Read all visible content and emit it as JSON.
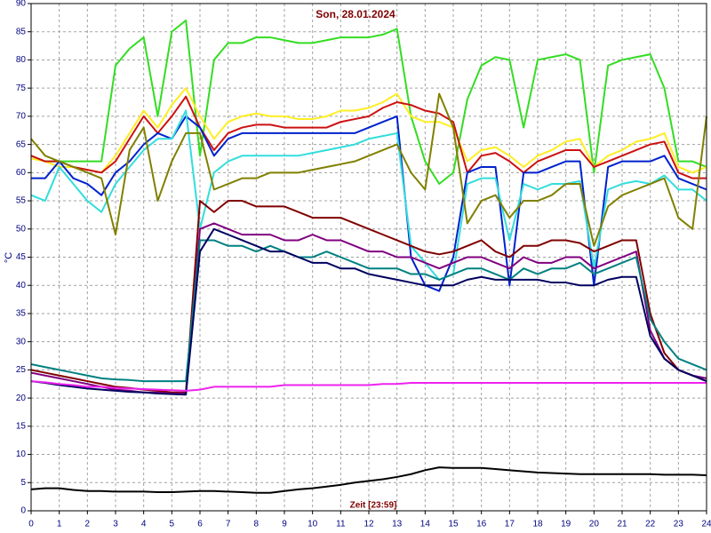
{
  "chart_data": {
    "type": "line",
    "title": "Son, 28.01.2024",
    "x_label": "Zeit [23:59]",
    "y_label": "°C",
    "x": [
      0,
      0.5,
      1,
      1.5,
      2,
      2.5,
      3,
      3.5,
      4,
      4.5,
      5,
      5.5,
      6,
      6.5,
      7,
      7.5,
      8,
      8.5,
      9,
      9.5,
      10,
      10.5,
      11,
      11.5,
      12,
      12.5,
      13,
      13.5,
      14,
      14.5,
      15,
      15.5,
      16,
      16.5,
      17,
      17.5,
      18,
      18.5,
      19,
      19.5,
      20,
      20.5,
      21,
      21.5,
      22,
      22.5,
      23,
      23.5,
      24
    ],
    "xlim": [
      0,
      24
    ],
    "xticks": [
      0,
      1,
      2,
      3,
      4,
      5,
      6,
      7,
      8,
      9,
      10,
      11,
      12,
      13,
      14,
      15,
      16,
      17,
      18,
      19,
      20,
      21,
      22,
      23,
      24
    ],
    "ylim": [
      0,
      90
    ],
    "yticks": [
      0,
      5,
      10,
      15,
      20,
      25,
      30,
      35,
      40,
      45,
      50,
      55,
      60,
      65,
      70,
      75,
      80,
      85,
      90
    ],
    "grid": true,
    "series": [
      {
        "color": "#33dd22",
        "values": [
          63,
          62,
          62,
          62,
          62,
          62,
          79,
          82,
          84,
          70,
          85,
          87,
          63,
          80,
          83,
          83,
          84,
          84,
          83.5,
          83,
          83,
          83.5,
          84,
          84,
          84,
          84.5,
          85.5,
          70,
          62,
          58,
          60,
          73,
          79,
          80.5,
          80,
          68,
          80,
          80.5,
          81,
          80,
          60,
          79,
          80,
          80.5,
          81,
          75,
          62,
          62,
          61
        ]
      },
      {
        "color": "#ffee22",
        "values": [
          62.5,
          62,
          61,
          61,
          60.5,
          60,
          63,
          67,
          71,
          68,
          72,
          75,
          70,
          66,
          69,
          70,
          70.5,
          70,
          70,
          69.5,
          69.5,
          70,
          71,
          71,
          71.5,
          72.5,
          74,
          70,
          69,
          69,
          68,
          62,
          64,
          64.5,
          63,
          61,
          63,
          64,
          65.5,
          66,
          61,
          63,
          64,
          65.5,
          66,
          67,
          61,
          60,
          61
        ]
      },
      {
        "color": "#cc1111",
        "values": [
          63,
          62,
          62,
          61,
          60.5,
          60,
          62,
          66,
          70,
          67,
          70,
          73.5,
          68,
          64,
          67,
          68,
          68.5,
          68.5,
          68,
          68,
          68,
          68,
          69,
          69.5,
          70,
          71.5,
          72.5,
          72,
          71,
          70.5,
          69,
          60,
          63,
          63.5,
          62,
          60,
          62,
          63,
          64,
          64,
          61,
          62,
          63,
          64,
          65,
          65.5,
          60,
          59,
          59
        ]
      },
      {
        "color": "#0022cc",
        "values": [
          59,
          59,
          62,
          59,
          58,
          56,
          60,
          62,
          65,
          67,
          66,
          70,
          68,
          63,
          66,
          67,
          67,
          67,
          67,
          67,
          67,
          67,
          67,
          67,
          68,
          69,
          70,
          45,
          40,
          39,
          45,
          60,
          61,
          61,
          40,
          60,
          60,
          61,
          62,
          62,
          40,
          61,
          62,
          62,
          62,
          63,
          59,
          58,
          57
        ]
      },
      {
        "color": "#33dddd",
        "values": [
          56,
          55,
          61,
          58,
          55,
          53,
          58,
          61,
          64,
          66,
          66,
          71,
          50,
          60,
          62,
          63,
          63,
          63,
          63,
          63,
          63.5,
          64,
          64.5,
          65,
          66,
          66.5,
          67,
          47,
          44,
          41,
          42,
          58,
          59,
          59,
          48,
          58,
          57,
          58,
          58,
          58.5,
          43,
          57,
          58,
          58.5,
          58,
          59.5,
          57,
          57,
          55
        ]
      },
      {
        "color": "#808000",
        "values": [
          66,
          63,
          62,
          61,
          60,
          59,
          49,
          64,
          68,
          55,
          62,
          67,
          67,
          57,
          58,
          59,
          59,
          60,
          60,
          60,
          60.5,
          61,
          61.5,
          62,
          63,
          64,
          65,
          60,
          57,
          74,
          68,
          51,
          55,
          56,
          52,
          55,
          55,
          56,
          58,
          58,
          47,
          54,
          56,
          57,
          58,
          59,
          52,
          50,
          70
        ]
      },
      {
        "color": "#800000",
        "values": [
          25,
          24.5,
          24,
          23.5,
          23,
          22.5,
          22,
          21.8,
          21.5,
          21.3,
          21,
          21,
          55,
          53,
          55,
          55,
          54,
          54,
          54,
          53,
          52,
          52,
          52,
          51,
          50,
          49,
          48,
          47,
          46,
          45.5,
          46,
          47,
          48,
          46,
          45,
          47,
          47,
          48,
          48,
          47.5,
          46,
          47,
          48,
          48,
          35,
          28,
          25,
          24,
          23
        ]
      },
      {
        "color": "#800080",
        "values": [
          24.5,
          24,
          23.5,
          23,
          22.5,
          22,
          21.5,
          21.3,
          21,
          21,
          20.8,
          20.8,
          50,
          51,
          50,
          49,
          49,
          49,
          48,
          48,
          49,
          48,
          48,
          47,
          46,
          46,
          45,
          45,
          44,
          43,
          44,
          45,
          45,
          44,
          43,
          45,
          44,
          44,
          45,
          45,
          43,
          44,
          45,
          46,
          32,
          27,
          25,
          24,
          23.5
        ]
      },
      {
        "color": "#008080",
        "values": [
          26,
          25.5,
          25,
          24.5,
          24,
          23.5,
          23.3,
          23.2,
          23,
          23,
          23,
          23,
          48,
          48,
          47,
          47,
          46,
          47,
          46,
          45,
          45,
          46,
          45,
          44,
          43,
          43,
          43,
          42,
          42,
          41,
          42,
          43,
          43,
          42,
          41,
          43,
          42,
          43,
          43,
          44,
          42,
          43,
          44,
          45,
          34,
          30,
          27,
          26,
          25
        ]
      },
      {
        "color": "#000060",
        "values": [
          23,
          22.7,
          22.3,
          22,
          21.7,
          21.5,
          21.3,
          21.1,
          21,
          20.8,
          20.7,
          20.6,
          46,
          50,
          49,
          48,
          47,
          46,
          46,
          45,
          44,
          44,
          43,
          43,
          42,
          41.5,
          41,
          40.5,
          40,
          40,
          40,
          41,
          41.5,
          41,
          41,
          41,
          41,
          40.5,
          40.5,
          40,
          40,
          41,
          41.5,
          41.5,
          31,
          27,
          25,
          24,
          23
        ]
      },
      {
        "color": "#ee22ee",
        "values": [
          23,
          22.8,
          22.5,
          22.3,
          22,
          22,
          21.8,
          21.7,
          21.6,
          21.5,
          21.4,
          21.3,
          21.5,
          22,
          22,
          22,
          22,
          22,
          22.3,
          22.3,
          22.3,
          22.3,
          22.3,
          22.3,
          22.3,
          22.5,
          22.5,
          22.7,
          22.7,
          22.7,
          22.7,
          22.7,
          22.7,
          22.7,
          22.7,
          22.7,
          22.7,
          22.7,
          22.7,
          22.7,
          22.7,
          22.7,
          22.7,
          22.7,
          22.7,
          22.7,
          22.7,
          22.7,
          22.7
        ]
      },
      {
        "color": "#000000",
        "values": [
          3.8,
          4,
          4,
          3.7,
          3.5,
          3.5,
          3.4,
          3.4,
          3.4,
          3.3,
          3.3,
          3.4,
          3.5,
          3.5,
          3.4,
          3.3,
          3.2,
          3.2,
          3.5,
          3.8,
          4,
          4.3,
          4.6,
          5,
          5.3,
          5.6,
          6,
          6.5,
          7.2,
          7.7,
          7.6,
          7.6,
          7.6,
          7.4,
          7.2,
          7,
          6.8,
          6.7,
          6.6,
          6.5,
          6.5,
          6.5,
          6.5,
          6.5,
          6.5,
          6.4,
          6.4,
          6.4,
          6.3
        ]
      }
    ]
  }
}
